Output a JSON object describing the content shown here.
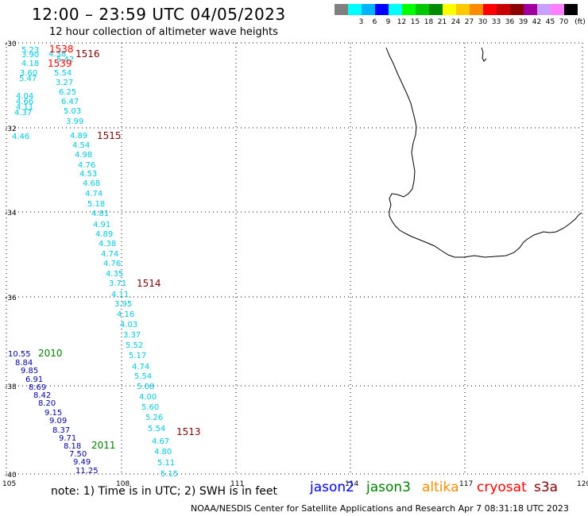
{
  "header": {
    "title": "12:00 – 23:59 UTC 04/05/2023",
    "subtitle": "12 hour collection of altimeter wave heights"
  },
  "legend": {
    "unit": "(ft)",
    "swatches": [
      {
        "color": "#808080",
        "label": ""
      },
      {
        "color": "#00ffff",
        "label": "3"
      },
      {
        "color": "#00b4ff",
        "label": "6"
      },
      {
        "color": "#0000ff",
        "label": "9"
      },
      {
        "color": "#00ffff",
        "label": "12"
      },
      {
        "color": "#00ff00",
        "label": "15"
      },
      {
        "color": "#00c800",
        "label": "18"
      },
      {
        "color": "#008c00",
        "label": "21"
      },
      {
        "color": "#ffff00",
        "label": "24"
      },
      {
        "color": "#ffc800",
        "label": "27"
      },
      {
        "color": "#ff8c00",
        "label": "30"
      },
      {
        "color": "#ff0000",
        "label": "33"
      },
      {
        "color": "#c80000",
        "label": "36"
      },
      {
        "color": "#8c0000",
        "label": "39"
      },
      {
        "color": "#a000a0",
        "label": "42"
      },
      {
        "color": "#c8a0ff",
        "label": "45"
      },
      {
        "color": "#ff80ff",
        "label": "70"
      },
      {
        "color": "#000000",
        "label": ""
      }
    ]
  },
  "axes": {
    "lat_labels": [
      "-30",
      "-32",
      "-34",
      "-36",
      "-38",
      "-40"
    ],
    "lon_labels": [
      "105",
      "108",
      "111",
      "114",
      "117",
      "120"
    ]
  },
  "colors": {
    "cyan": "#00c8e0",
    "darkblue": "#0000a0",
    "darkgreen": "#008000",
    "darkred": "#800000",
    "red": "#ff0000"
  },
  "track_labels": [
    {
      "text": "1538",
      "color": "red"
    },
    {
      "text": "1516",
      "color": "darkred"
    },
    {
      "text": "1539",
      "color": "red"
    },
    {
      "text": "1515",
      "color": "darkred"
    },
    {
      "text": "1514",
      "color": "darkred"
    },
    {
      "text": "2010",
      "color": "darkgreen"
    },
    {
      "text": "1513",
      "color": "darkred"
    },
    {
      "text": "2011",
      "color": "darkgreen"
    }
  ],
  "wave_heights": [
    {
      "text": "5.23",
      "color": "cyan"
    },
    {
      "text": "4.38",
      "color": "cyan"
    },
    {
      "text": "3.90",
      "color": "cyan"
    },
    {
      "text": "4.18",
      "color": "cyan"
    },
    {
      "text": "5.42",
      "color": "cyan"
    },
    {
      "text": "3.60",
      "color": "cyan"
    },
    {
      "text": "5.54",
      "color": "cyan"
    },
    {
      "text": "5.47",
      "color": "cyan"
    },
    {
      "text": "3.27",
      "color": "cyan"
    },
    {
      "text": "6.25",
      "color": "cyan"
    },
    {
      "text": "4.04",
      "color": "cyan"
    },
    {
      "text": "4.66",
      "color": "cyan"
    },
    {
      "text": "6.47",
      "color": "cyan"
    },
    {
      "text": "4.11",
      "color": "cyan"
    },
    {
      "text": "5.03",
      "color": "cyan"
    },
    {
      "text": "4.37",
      "color": "cyan"
    },
    {
      "text": "3.99",
      "color": "cyan"
    },
    {
      "text": "4.46",
      "color": "cyan"
    },
    {
      "text": "4.89",
      "color": "cyan"
    },
    {
      "text": "4.54",
      "color": "cyan"
    },
    {
      "text": "4.98",
      "color": "cyan"
    },
    {
      "text": "4.76",
      "color": "cyan"
    },
    {
      "text": "4.53",
      "color": "cyan"
    },
    {
      "text": "4.68",
      "color": "cyan"
    },
    {
      "text": "4.74",
      "color": "cyan"
    },
    {
      "text": "5.18",
      "color": "cyan"
    },
    {
      "text": "4.81",
      "color": "cyan"
    },
    {
      "text": "4.91",
      "color": "cyan"
    },
    {
      "text": "4.89",
      "color": "cyan"
    },
    {
      "text": "4.38",
      "color": "cyan"
    },
    {
      "text": "4.74",
      "color": "cyan"
    },
    {
      "text": "4.76",
      "color": "cyan"
    },
    {
      "text": "4.35",
      "color": "cyan"
    },
    {
      "text": "3.71",
      "color": "cyan"
    },
    {
      "text": "4.11",
      "color": "cyan"
    },
    {
      "text": "3.95",
      "color": "cyan"
    },
    {
      "text": "4.16",
      "color": "cyan"
    },
    {
      "text": "4.03",
      "color": "cyan"
    },
    {
      "text": "3.37",
      "color": "cyan"
    },
    {
      "text": "5.52",
      "color": "cyan"
    },
    {
      "text": "5.17",
      "color": "cyan"
    },
    {
      "text": "4.74",
      "color": "cyan"
    },
    {
      "text": "5.54",
      "color": "cyan"
    },
    {
      "text": "5.08",
      "color": "cyan"
    },
    {
      "text": "4.00",
      "color": "cyan"
    },
    {
      "text": "5.60",
      "color": "cyan"
    },
    {
      "text": "5.26",
      "color": "cyan"
    },
    {
      "text": "5.54",
      "color": "cyan"
    },
    {
      "text": "4.67",
      "color": "cyan"
    },
    {
      "text": "4.80",
      "color": "cyan"
    },
    {
      "text": "5.11",
      "color": "cyan"
    },
    {
      "text": "5.15",
      "color": "cyan"
    },
    {
      "text": "10.55",
      "color": "darkblue"
    },
    {
      "text": "8.84",
      "color": "darkblue"
    },
    {
      "text": "9.85",
      "color": "darkblue"
    },
    {
      "text": "6.91",
      "color": "darkblue"
    },
    {
      "text": "8.69",
      "color": "darkblue"
    },
    {
      "text": "8.42",
      "color": "darkblue"
    },
    {
      "text": "8.20",
      "color": "darkblue"
    },
    {
      "text": "9.15",
      "color": "darkblue"
    },
    {
      "text": "9.09",
      "color": "darkblue"
    },
    {
      "text": "8.37",
      "color": "darkblue"
    },
    {
      "text": "9.71",
      "color": "darkblue"
    },
    {
      "text": "8.18",
      "color": "darkblue"
    },
    {
      "text": "7.50",
      "color": "darkblue"
    },
    {
      "text": "9.49",
      "color": "darkblue"
    },
    {
      "text": "11.25",
      "color": "darkblue"
    }
  ],
  "footer": {
    "note": "note:  1) Time is in UTC; 2) SWH is in feet",
    "satellites": [
      {
        "name": "jason2",
        "color": "#0000ff"
      },
      {
        "name": "jason3",
        "color": "#008000"
      },
      {
        "name": "altika",
        "color": "#ff8c00"
      },
      {
        "name": "cryosat",
        "color": "#ff0000"
      },
      {
        "name": "s3a",
        "color": "#800000"
      }
    ],
    "credit": "NOAA/NESDIS Center for Satellite Applications and Research    Apr  7 08:31:18 UTC 2023"
  }
}
